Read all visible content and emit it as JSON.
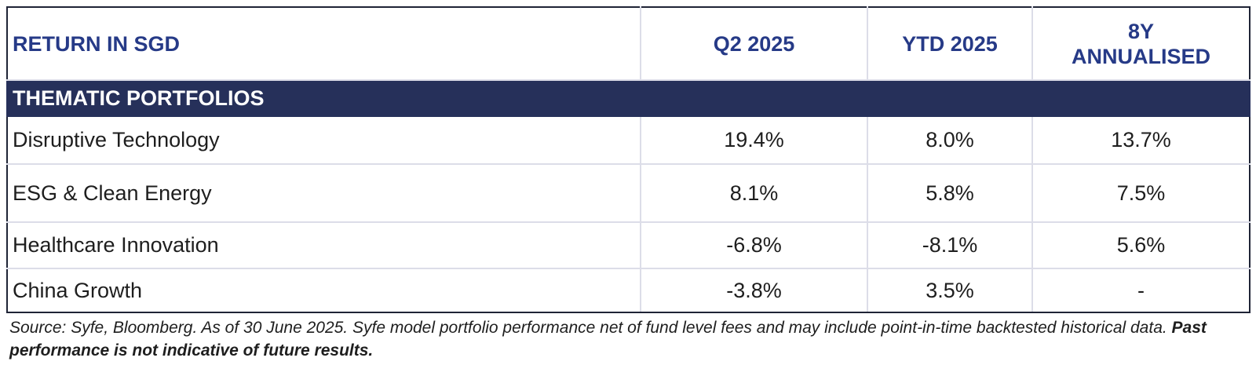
{
  "table": {
    "header": {
      "label": "RETURN IN SGD",
      "col1": "Q2 2025",
      "col2": "YTD 2025",
      "col3_line1": "8Y",
      "col3_line2": "ANNUALISED"
    },
    "section_title": "THEMATIC PORTFOLIOS",
    "rows": [
      {
        "name": "Disruptive Technology",
        "q2": "19.4%",
        "ytd": "8.0%",
        "y8": "13.7%"
      },
      {
        "name": "ESG & Clean Energy",
        "q2": "8.1%",
        "ytd": "5.8%",
        "y8": "7.5%"
      },
      {
        "name": "Healthcare Innovation",
        "q2": "-6.8%",
        "ytd": "-8.1%",
        "y8": "5.6%"
      },
      {
        "name": "China Growth",
        "q2": "-3.8%",
        "ytd": "3.5%",
        "y8": "-"
      }
    ]
  },
  "footnote": {
    "text": "Source: Syfe, Bloomberg. As of 30 June 2025. Syfe model portfolio performance net of fund level fees and may include point-in-time backtested historical data. ",
    "bold_text": "Past performance is not indicative of future results."
  },
  "colors": {
    "header_text": "#263a87",
    "section_band": "#26305a",
    "grid_line": "#dcdde8",
    "outer_border": "#1f2436"
  }
}
